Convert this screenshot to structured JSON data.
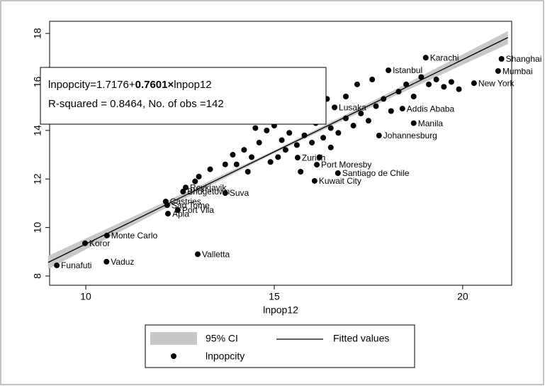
{
  "chart_data": {
    "type": "scatter",
    "x_label": "lnpop12",
    "xlim": [
      9.04,
      21.3
    ],
    "ylim": [
      7.62,
      18.5
    ],
    "xticks": [
      10,
      15,
      20
    ],
    "yticks": [
      8,
      10,
      12,
      14,
      16,
      18
    ],
    "annotation": {
      "lhs": "lnpopcity=1.7176+",
      "slope": "0.7601×",
      "rhs": "lnpop12",
      "stats": "R-squared = 0.8464,   No. of obs =142"
    },
    "series": [
      {
        "name": "95% CI",
        "color": "#c8c8c8",
        "x": [
          9,
          12,
          15,
          18,
          21.2
        ],
        "lower": [
          8.29,
          10.7,
          13.06,
          15.28,
          17.56
        ],
        "upper": [
          8.83,
          10.98,
          13.18,
          15.52,
          18.1
        ]
      },
      {
        "name": "Fitted values",
        "color": "#000000",
        "x": [
          9,
          21.2
        ],
        "values": [
          8.559,
          17.831
        ]
      },
      {
        "name": "lnpopcity",
        "color": "#000000",
        "x": [
          9.23,
          9.98,
          10.56,
          10.55,
          12.97,
          12.18,
          12.44,
          12.16,
          12.12,
          12.58,
          12.65,
          13.7,
          16.69,
          17.78,
          19.02,
          21.03,
          20.94,
          16.07,
          15.62,
          16.13,
          18.03,
          20.3,
          18.4,
          18.7,
          16.6,
          14.5,
          14.8,
          15.0,
          15.2,
          15.4,
          15.6,
          15.8,
          16.0,
          16.1,
          16.3,
          16.5,
          16.7,
          16.9,
          17.1,
          17.3,
          17.5,
          17.7,
          17.9,
          18.1,
          18.3,
          18.5,
          18.7,
          18.9,
          19.1,
          19.3,
          19.5,
          19.7,
          19.9,
          17.2,
          17.6,
          16.9,
          16.4,
          15.9,
          15.5,
          14.6,
          14.4,
          14.0,
          14.3,
          13.7,
          13.3,
          14.9,
          15.1,
          15.3,
          16.2,
          16.5,
          15.7,
          14.2,
          13.9,
          13.0,
          12.9
        ],
        "values": [
          8.44,
          9.35,
          9.67,
          8.59,
          8.9,
          10.57,
          10.72,
          10.92,
          11.07,
          11.48,
          11.65,
          11.42,
          12.24,
          13.79,
          17.0,
          16.95,
          16.45,
          11.92,
          12.88,
          12.59,
          16.48,
          15.95,
          14.9,
          14.3,
          14.95,
          14.1,
          14.0,
          14.2,
          13.6,
          13.9,
          13.4,
          13.8,
          13.5,
          14.3,
          13.7,
          14.1,
          13.9,
          14.5,
          14.2,
          14.7,
          14.4,
          15.0,
          15.3,
          14.8,
          15.6,
          15.9,
          15.4,
          16.2,
          15.9,
          16.1,
          15.8,
          16.0,
          15.7,
          15.9,
          16.1,
          15.4,
          15.3,
          14.6,
          14.4,
          13.5,
          12.9,
          12.6,
          12.3,
          12.6,
          12.4,
          12.7,
          12.9,
          13.2,
          12.9,
          13.3,
          12.3,
          13.2,
          13.0,
          12.1,
          11.9
        ],
        "labels": [
          "Funafuti",
          "Koror",
          "Monte Carlo",
          "Vaduz",
          "Valletta",
          "Apia",
          "Port Vila",
          "Sao Tome",
          "Castries",
          "Bridgetown",
          "Reykjavik",
          "Suva",
          "Santiago de Chile",
          "Johannesburg",
          "Karachi",
          "Shanghai",
          "Mumbai",
          "Kuwait City",
          "Zurich",
          "Port Moresby",
          "Istanbul",
          "New York",
          "Addis Ababa",
          "Manila",
          "Lusaka",
          null,
          null,
          null,
          null,
          null,
          null,
          null,
          null,
          null,
          null,
          null,
          null,
          null,
          null,
          null,
          null,
          null,
          null,
          null,
          null,
          null,
          null,
          null,
          null,
          null,
          null,
          null,
          null,
          null,
          null,
          null,
          null,
          null,
          null,
          null,
          null,
          null,
          null,
          null,
          null,
          null,
          null,
          null,
          null,
          null,
          null,
          null,
          null,
          null,
          null
        ]
      }
    ]
  }
}
